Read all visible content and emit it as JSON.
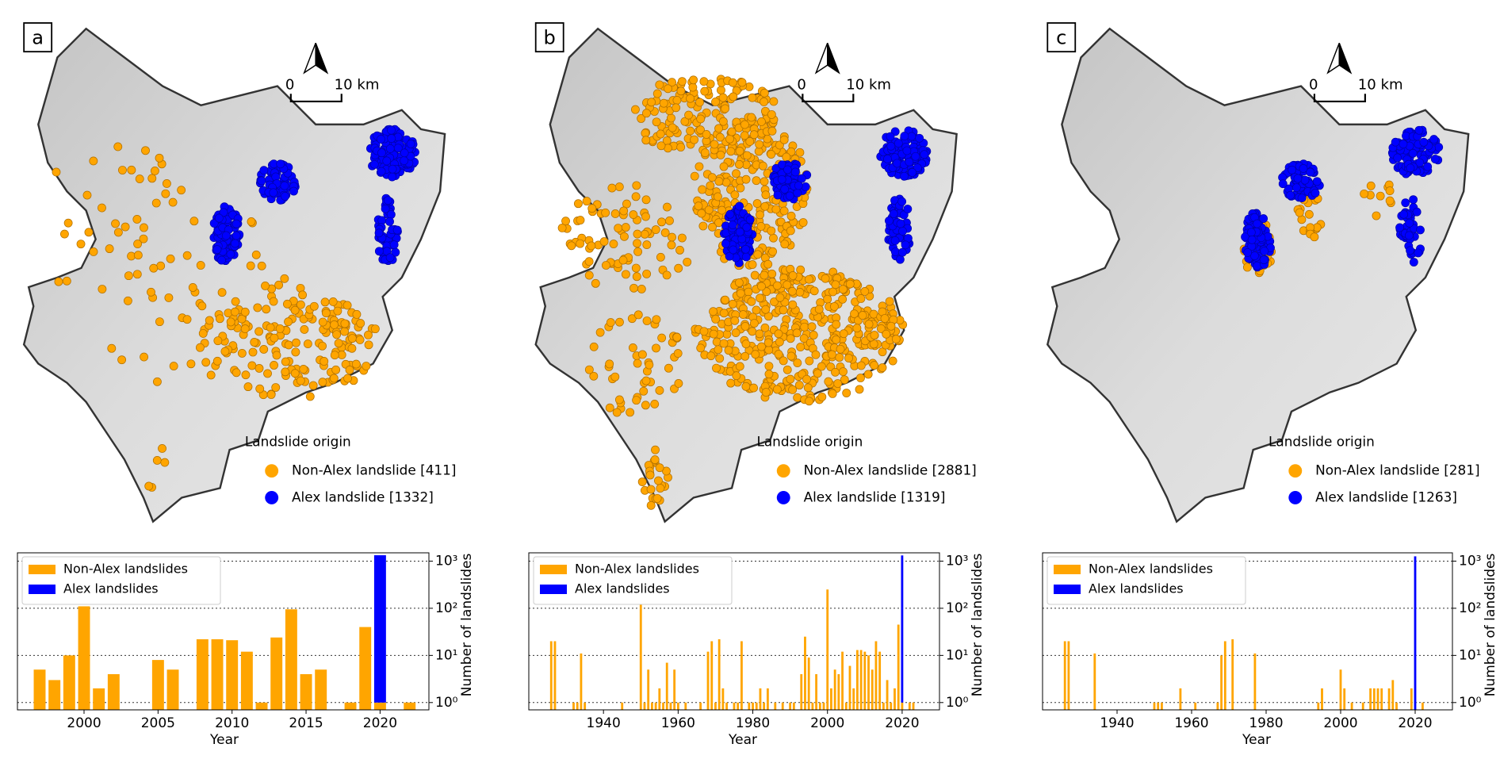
{
  "maps": [
    {
      "label": "a",
      "scale_labels": [
        "0",
        "10 km"
      ],
      "legend_title": "Landslide origin",
      "legend": [
        "Non-Alex landslide [411]",
        "Alex landslide [1332]"
      ],
      "colors": [
        "#ffa500",
        "#0000ff"
      ]
    },
    {
      "label": "b",
      "scale_labels": [
        "0",
        "10 km"
      ],
      "legend_title": "Landslide origin",
      "legend": [
        "Non-Alex landslide [2881]",
        "Alex landslide [1319]"
      ],
      "colors": [
        "#ffa500",
        "#0000ff"
      ]
    },
    {
      "label": "c",
      "scale_labels": [
        "0",
        "10 km"
      ],
      "legend_title": "Landslide origin",
      "legend": [
        "Non-Alex landslide [281]",
        "Alex landslide [1263]"
      ],
      "colors": [
        "#ffa500",
        "#0000ff"
      ]
    }
  ],
  "chart_data": [
    {
      "type": "bar",
      "xlabel": "Year",
      "ylabel": "Number of landslides",
      "log_y": true,
      "grid": true,
      "legend": "upper left",
      "stacked": true,
      "x": [
        1997,
        1998,
        1999,
        2000,
        2001,
        2002,
        2005,
        2006,
        2008,
        2009,
        2010,
        2011,
        2012,
        2013,
        2014,
        2015,
        2016,
        2018,
        2019,
        2020,
        2022
      ],
      "xlim": [
        1995.5,
        2023.3
      ],
      "xticks": [
        2000,
        2005,
        2010,
        2015,
        2020
      ],
      "ylim": [
        0.7,
        1500
      ],
      "yticks": [
        {
          "value": 1,
          "label": "10⁰"
        },
        {
          "value": 10,
          "label": "10¹"
        },
        {
          "value": 100,
          "label": "10²"
        },
        {
          "value": 1000,
          "label": "10³"
        }
      ],
      "series": [
        {
          "name": "Non-Alex landslides",
          "color": "#ffa500",
          "values": [
            5,
            3,
            10,
            110,
            2,
            4,
            8,
            5,
            22,
            22,
            21,
            12,
            1,
            24,
            95,
            4,
            5,
            1,
            40,
            1,
            1
          ]
        },
        {
          "name": "Alex landslides",
          "color": "#0000ff",
          "values": [
            null,
            null,
            null,
            null,
            null,
            null,
            null,
            null,
            null,
            null,
            null,
            null,
            null,
            null,
            null,
            null,
            null,
            null,
            null,
            1332,
            null
          ]
        }
      ]
    },
    {
      "type": "bar",
      "xlabel": "Year",
      "ylabel": "Number of landslides",
      "log_y": true,
      "grid": true,
      "legend": "upper left",
      "stacked": true,
      "x": [
        1926,
        1927,
        1932,
        1933,
        1934,
        1935,
        1945,
        1950,
        1951,
        1952,
        1953,
        1954,
        1955,
        1956,
        1957,
        1958,
        1959,
        1960,
        1962,
        1966,
        1968,
        1969,
        1970,
        1971,
        1972,
        1973,
        1975,
        1976,
        1977,
        1979,
        1980,
        1981,
        1982,
        1983,
        1984,
        1986,
        1988,
        1990,
        1991,
        1993,
        1994,
        1995,
        1996,
        1997,
        1998,
        1999,
        2000,
        2001,
        2002,
        2003,
        2004,
        2005,
        2006,
        2007,
        2008,
        2009,
        2010,
        2011,
        2012,
        2013,
        2014,
        2015,
        2016,
        2017,
        2018,
        2019,
        2020,
        2022,
        2023
      ],
      "xlim": [
        1920,
        2030
      ],
      "xticks": [
        1940,
        1960,
        1980,
        2000,
        2020
      ],
      "ylim": [
        0.7,
        1500
      ],
      "yticks": [
        {
          "value": 1,
          "label": "10⁰"
        },
        {
          "value": 10,
          "label": "10¹"
        },
        {
          "value": 100,
          "label": "10²"
        },
        {
          "value": 1000,
          "label": "10³"
        }
      ],
      "series": [
        {
          "name": "Non-Alex landslides",
          "color": "#ffa500",
          "values": [
            20,
            20,
            1,
            1,
            11,
            1,
            1,
            130,
            1,
            5,
            1,
            1,
            2,
            1,
            7,
            1,
            5,
            1,
            1,
            1,
            12,
            20,
            1,
            22,
            2,
            1,
            1,
            1,
            20,
            1,
            1,
            1,
            2,
            1,
            2,
            1,
            1,
            1,
            1,
            4,
            25,
            9,
            1,
            4,
            1,
            1,
            250,
            2,
            5,
            4,
            12,
            1,
            6,
            2,
            13,
            13,
            12,
            10,
            5,
            20,
            12,
            1,
            3,
            1,
            2,
            45,
            1,
            1,
            1
          ]
        },
        {
          "name": "Alex landslides",
          "color": "#0000ff",
          "values": [
            null,
            null,
            null,
            null,
            null,
            null,
            null,
            null,
            null,
            null,
            null,
            null,
            null,
            null,
            null,
            null,
            null,
            null,
            null,
            null,
            null,
            null,
            null,
            null,
            null,
            null,
            null,
            null,
            null,
            null,
            null,
            null,
            null,
            null,
            null,
            null,
            null,
            null,
            null,
            null,
            null,
            null,
            null,
            null,
            null,
            null,
            null,
            null,
            null,
            null,
            null,
            null,
            null,
            null,
            null,
            null,
            null,
            null,
            null,
            null,
            null,
            null,
            null,
            null,
            null,
            null,
            1319,
            null,
            null
          ]
        }
      ]
    },
    {
      "type": "bar",
      "xlabel": "Year",
      "ylabel": "Number of landslides",
      "log_y": true,
      "grid": true,
      "legend": "upper left",
      "stacked": true,
      "x": [
        1926,
        1927,
        1934,
        1950,
        1951,
        1952,
        1957,
        1961,
        1967,
        1968,
        1969,
        1971,
        1977,
        1994,
        1995,
        2000,
        2001,
        2003,
        2006,
        2008,
        2009,
        2010,
        2011,
        2013,
        2014,
        2015,
        2019,
        2020,
        2022
      ],
      "xlim": [
        1920,
        2030
      ],
      "xticks": [
        1940,
        1960,
        1980,
        2000,
        2020
      ],
      "ylim": [
        0.7,
        1500
      ],
      "yticks": [
        {
          "value": 1,
          "label": "10⁰"
        },
        {
          "value": 10,
          "label": "10¹"
        },
        {
          "value": 100,
          "label": "10²"
        },
        {
          "value": 1000,
          "label": "10³"
        }
      ],
      "series": [
        {
          "name": "Non-Alex landslides",
          "color": "#ffa500",
          "values": [
            20,
            20,
            11,
            1,
            1,
            1,
            2,
            1,
            1,
            10,
            20,
            22,
            11,
            1,
            2,
            5,
            2,
            1,
            1,
            2,
            2,
            2,
            2,
            2,
            3,
            1,
            2,
            null,
            1
          ]
        },
        {
          "name": "Alex landslides",
          "color": "#0000ff",
          "values": [
            null,
            null,
            null,
            null,
            null,
            null,
            null,
            null,
            null,
            null,
            null,
            null,
            null,
            null,
            null,
            null,
            null,
            null,
            null,
            null,
            null,
            null,
            null,
            null,
            null,
            null,
            null,
            1263,
            null
          ]
        }
      ]
    }
  ]
}
